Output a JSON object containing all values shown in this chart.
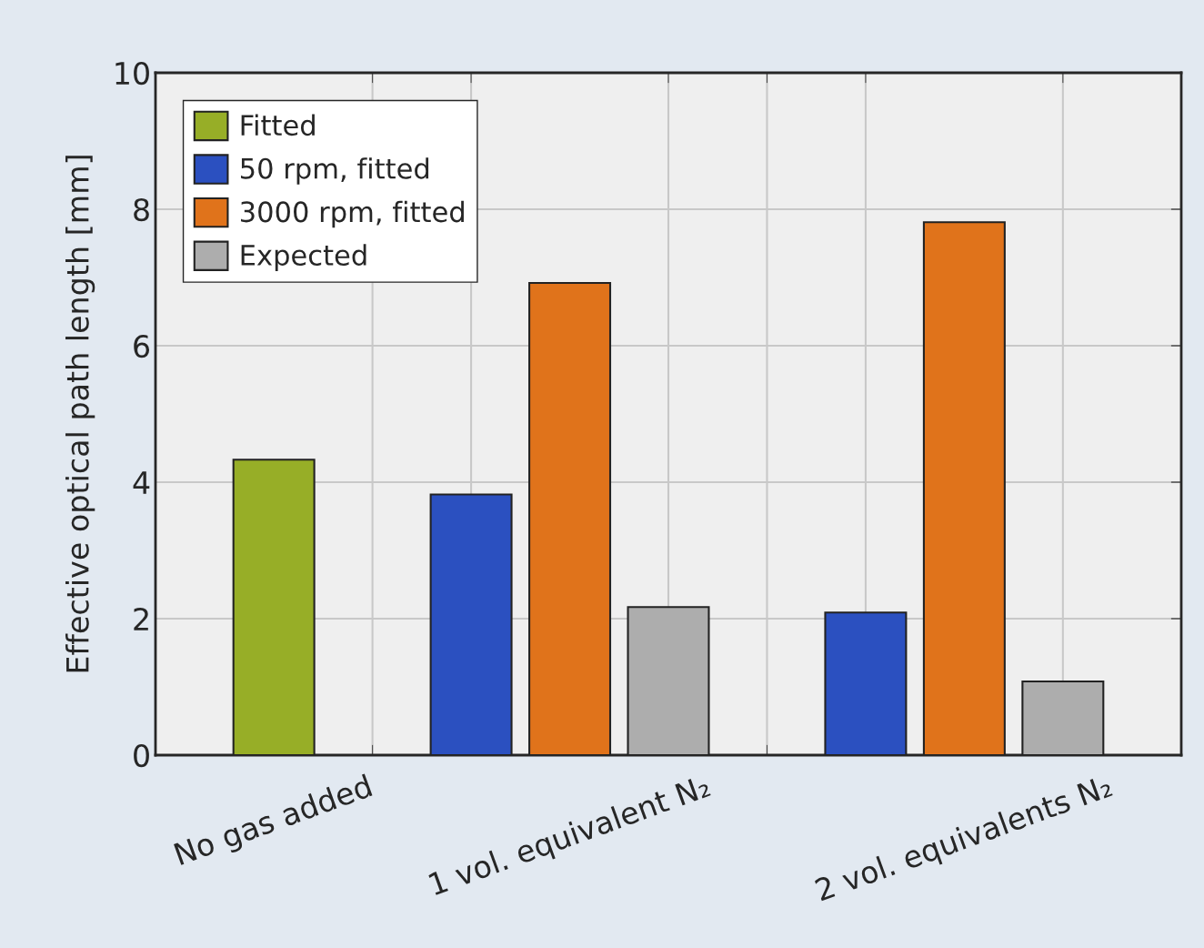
{
  "chart_data": {
    "type": "bar",
    "ylabel": "Effective optical path length [mm]",
    "categories": [
      "No gas added",
      "1 vol. equivalent N₂",
      "2 vol. equivalents N₂"
    ],
    "series": [
      {
        "name": "Fitted",
        "color": "#97ae27",
        "values": [
          4.33,
          null,
          null
        ]
      },
      {
        "name": "50 rpm, fitted",
        "color": "#2b50c0",
        "values": [
          null,
          3.82,
          2.09
        ]
      },
      {
        "name": "3000 rpm, fitted",
        "color": "#e0731b",
        "values": [
          null,
          6.92,
          7.81
        ]
      },
      {
        "name": "Expected",
        "color": "#adadad",
        "values": [
          null,
          2.17,
          1.08
        ]
      }
    ],
    "ylim": [
      0,
      10
    ],
    "yticks": [
      0,
      2,
      4,
      6,
      8,
      10
    ],
    "grid": true,
    "legend": "top left"
  }
}
